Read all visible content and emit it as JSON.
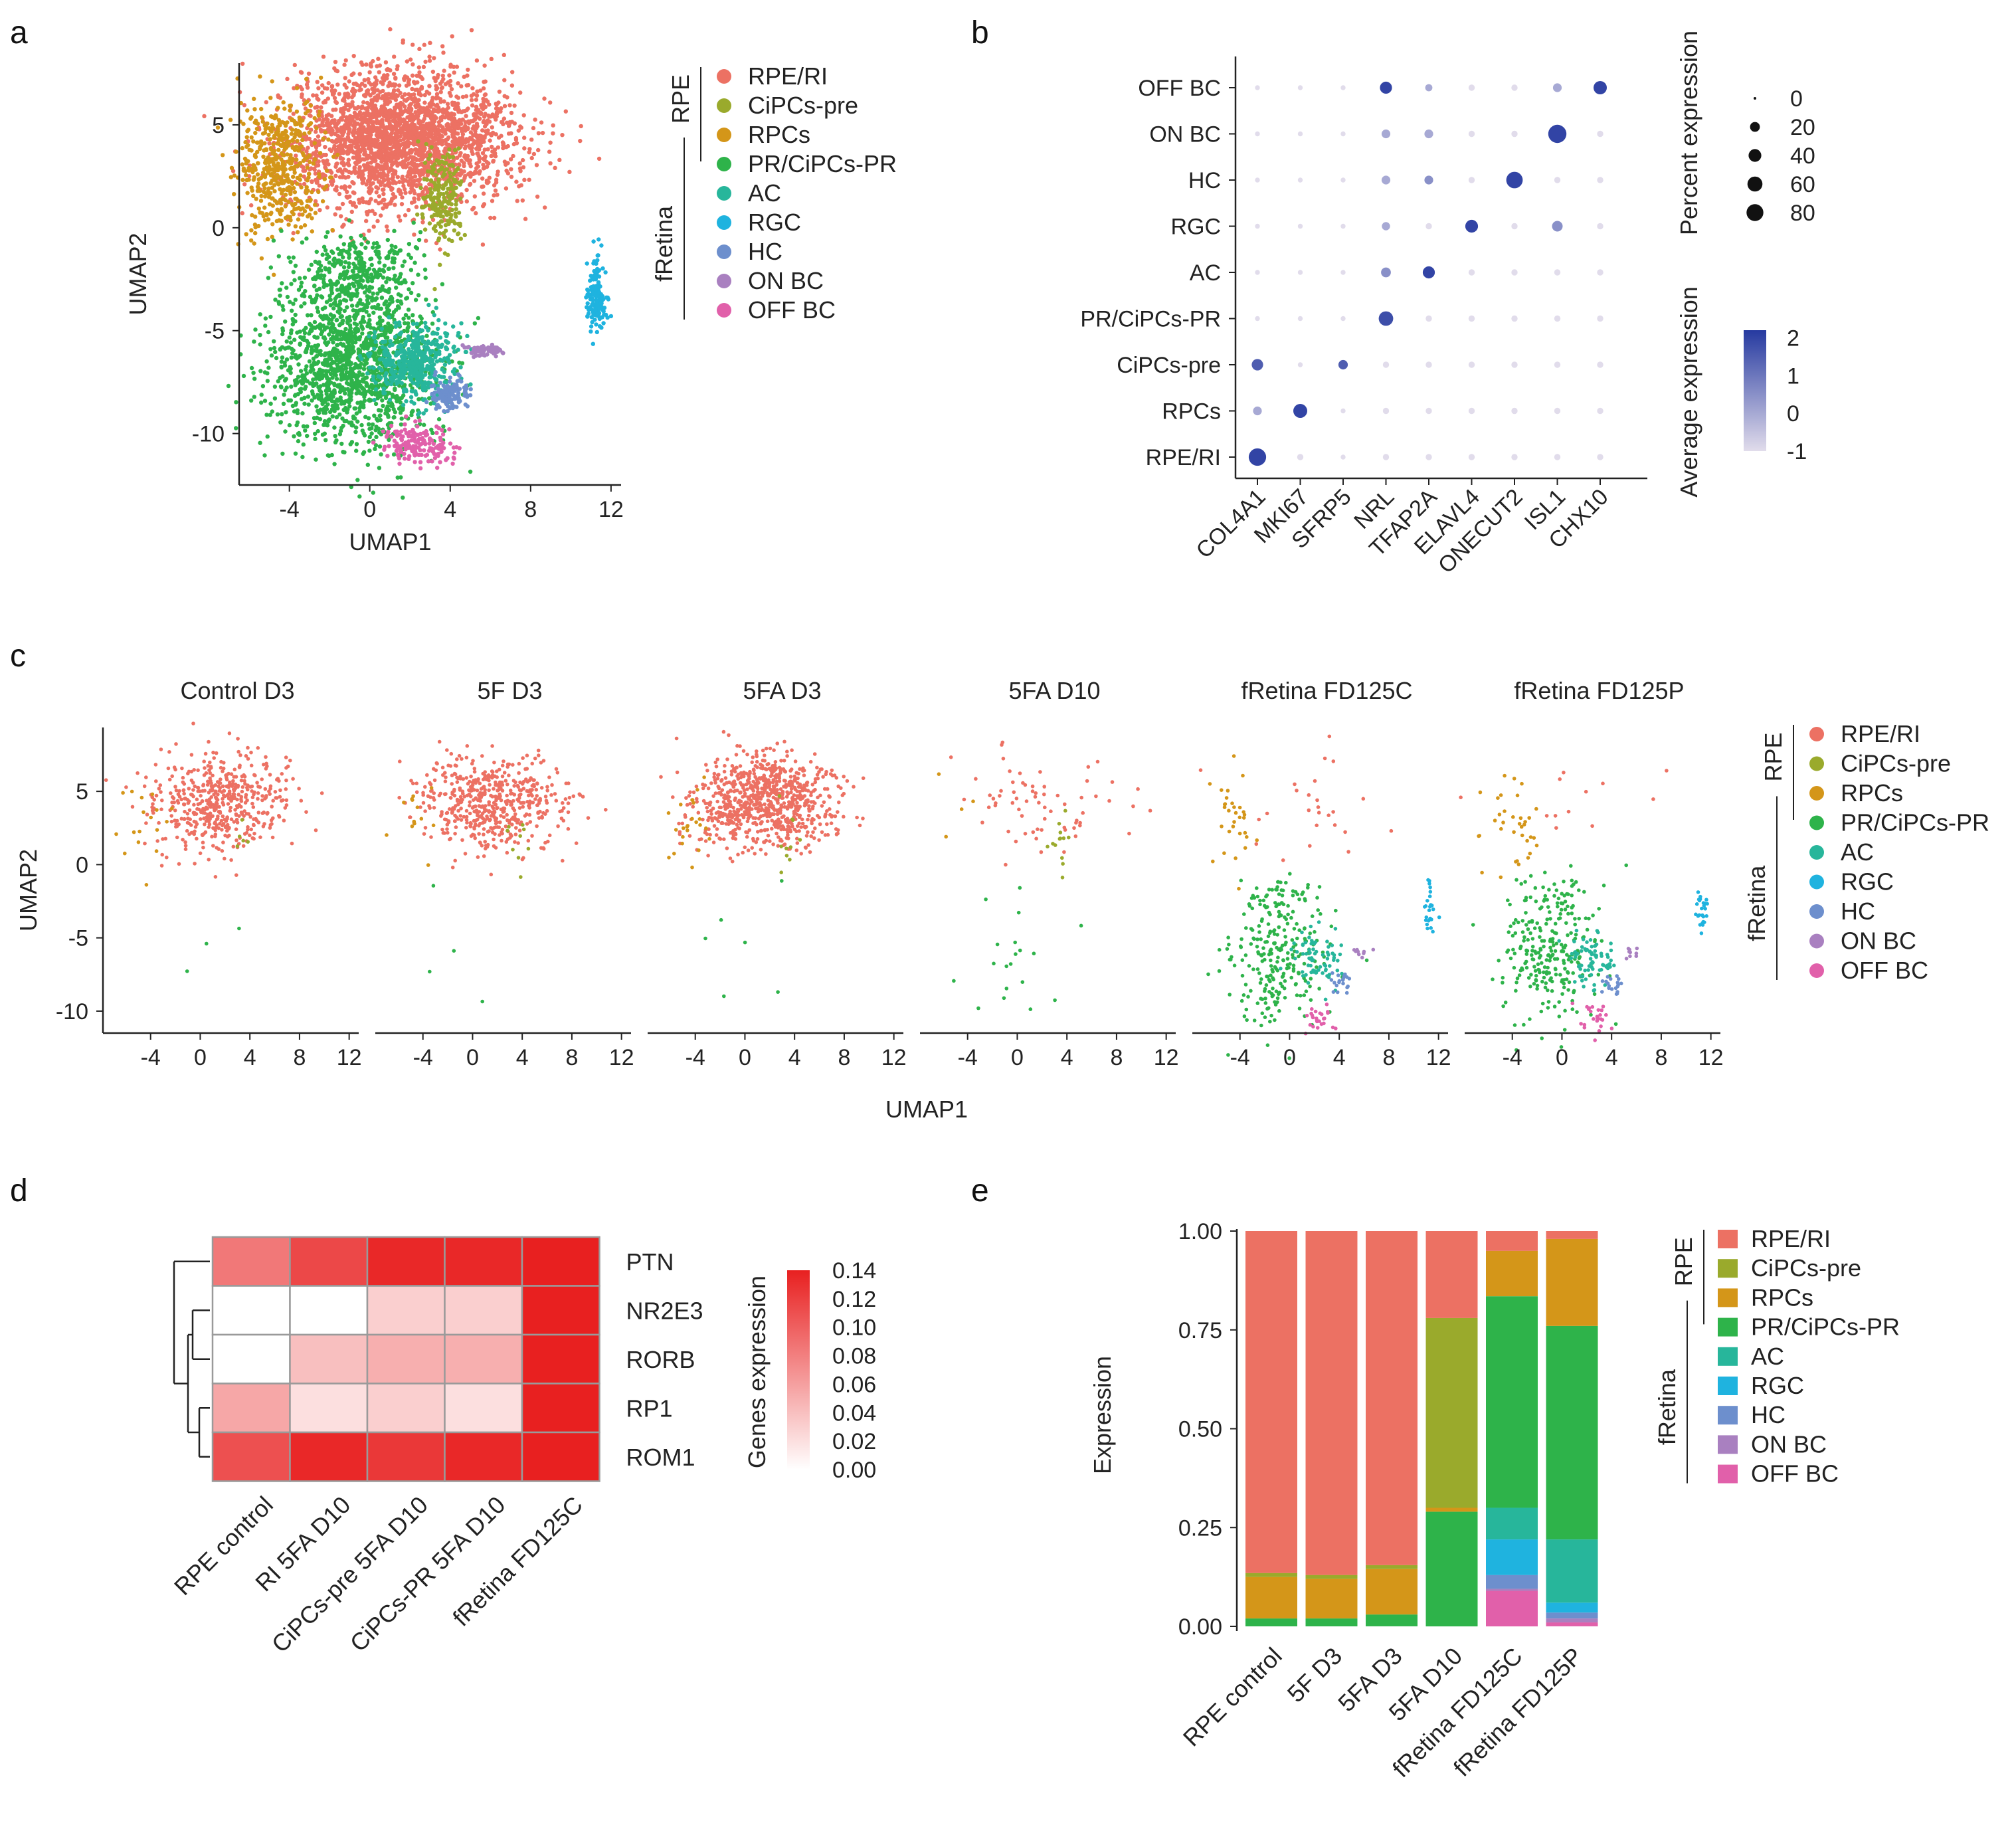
{
  "cell_types": {
    "names": [
      "RPE/RI",
      "CiPCs-pre",
      "RPCs",
      "PR/CiPCs-PR",
      "AC",
      "RGC",
      "HC",
      "ON BC",
      "OFF BC"
    ],
    "colors": [
      "#ec7163",
      "#9aaa2c",
      "#d49619",
      "#2eb34a",
      "#27b69b",
      "#1fb3df",
      "#6d8fcd",
      "#a980c0",
      "#e160aa"
    ],
    "groups": [
      {
        "label": "RPE",
        "members": [
          "RPE/RI",
          "CiPCs-pre",
          "RPCs"
        ]
      },
      {
        "label": "fRetina",
        "members": [
          "PR/CiPCs-PR",
          "AC",
          "RGC",
          "HC",
          "ON BC",
          "OFF BC"
        ]
      }
    ]
  },
  "panel_labels": {
    "a": "a",
    "b": "b",
    "c": "c",
    "d": "d",
    "e": "e"
  },
  "chart_data": [
    {
      "id": "a",
      "type": "scatter",
      "xlabel": "UMAP1",
      "ylabel": "UMAP2",
      "xticks": [
        -4,
        0,
        4,
        8,
        12
      ],
      "yticks": [
        5,
        0,
        -5,
        -10
      ],
      "xlim": [
        -6.5,
        12.5
      ],
      "ylim": [
        -12.5,
        8
      ],
      "clusters": [
        {
          "type": "RPE/RI",
          "cx": 1.5,
          "cy": 4.3,
          "sx": 2.8,
          "sy": 1.6,
          "n": 2600
        },
        {
          "type": "RPCs",
          "cx": -4.5,
          "cy": 3.0,
          "sx": 1.0,
          "sy": 1.6,
          "n": 500
        },
        {
          "type": "CiPCs-pre",
          "cx": 3.6,
          "cy": 1.5,
          "sx": 0.5,
          "sy": 1.2,
          "n": 220
        },
        {
          "type": "PR/CiPCs-PR",
          "cx": -1.0,
          "cy": -6.5,
          "sx": 2.0,
          "sy": 2.2,
          "n": 1500
        },
        {
          "type": "PR/CiPCs-PR",
          "cx": -0.5,
          "cy": -2.0,
          "sx": 1.6,
          "sy": 0.8,
          "n": 250
        },
        {
          "type": "AC",
          "cx": 2.3,
          "cy": -6.5,
          "sx": 1.0,
          "sy": 0.9,
          "n": 450
        },
        {
          "type": "RGC",
          "cx": 11.3,
          "cy": -3.3,
          "sx": 0.25,
          "sy": 0.9,
          "n": 160
        },
        {
          "type": "HC",
          "cx": 4.0,
          "cy": -8.1,
          "sx": 0.5,
          "sy": 0.4,
          "n": 120
        },
        {
          "type": "ON BC",
          "cx": 5.8,
          "cy": -6.0,
          "sx": 0.5,
          "sy": 0.15,
          "n": 60
        },
        {
          "type": "OFF BC",
          "cx": 2.4,
          "cy": -10.5,
          "sx": 0.9,
          "sy": 0.5,
          "n": 160
        }
      ]
    },
    {
      "id": "b",
      "type": "dotplot",
      "genes": [
        "COL4A1",
        "MKI67",
        "SFRP5",
        "NRL",
        "TFAP2A",
        "ELAVL4",
        "ONECUT2",
        "ISL1",
        "CHX10"
      ],
      "rows": [
        "OFF BC",
        "ON BC",
        "HC",
        "RGC",
        "AC",
        "PR/CiPCs-PR",
        "CiPCs-pre",
        "RPCs",
        "RPE/RI"
      ],
      "percent": [
        [
          2,
          2,
          2,
          35,
          8,
          5,
          5,
          15,
          45
        ],
        [
          2,
          2,
          2,
          15,
          15,
          5,
          5,
          95,
          5
        ],
        [
          2,
          2,
          2,
          15,
          15,
          5,
          75,
          5,
          5
        ],
        [
          2,
          2,
          2,
          12,
          5,
          40,
          5,
          25,
          5
        ],
        [
          2,
          2,
          2,
          20,
          35,
          5,
          5,
          5,
          5
        ],
        [
          2,
          2,
          2,
          55,
          5,
          5,
          5,
          5,
          5
        ],
        [
          30,
          2,
          18,
          5,
          5,
          5,
          5,
          5,
          5
        ],
        [
          15,
          50,
          2,
          5,
          5,
          5,
          5,
          5,
          5
        ],
        [
          85,
          5,
          2,
          5,
          5,
          5,
          5,
          5,
          5
        ]
      ],
      "avg_expr": [
        [
          -1,
          -1,
          -1,
          2,
          0,
          -1,
          -1,
          0,
          2
        ],
        [
          -1,
          -1,
          -1,
          0,
          0,
          -1,
          -1,
          2,
          -1
        ],
        [
          -1,
          -1,
          -1,
          0,
          0.5,
          -1,
          2,
          -1,
          -1
        ],
        [
          -1,
          -1,
          -1,
          0,
          -1,
          2,
          -1,
          0.5,
          -1
        ],
        [
          -1,
          -1,
          -1,
          0.5,
          2,
          -1,
          -1,
          -1,
          -1
        ],
        [
          -1,
          -1,
          -1,
          1.8,
          -1,
          -1,
          -1,
          -1,
          -1
        ],
        [
          1.5,
          -1,
          1.5,
          -1,
          -1,
          -1,
          -1,
          -1,
          -1
        ],
        [
          0,
          2,
          -1,
          -1,
          -1,
          -1,
          -1,
          -1,
          -1
        ],
        [
          2,
          -1,
          -1,
          -1,
          -1,
          -1,
          -1,
          -1,
          -1
        ]
      ],
      "size_legend": {
        "title": "Percent expression",
        "values": [
          0,
          20,
          40,
          60,
          80
        ]
      },
      "color_legend": {
        "title": "Average expression",
        "ticks": [
          2,
          1,
          0,
          -1
        ],
        "range": [
          -1,
          2.2
        ]
      }
    },
    {
      "id": "c",
      "type": "scatter-facets",
      "xlabel": "UMAP1",
      "ylabel": "UMAP2",
      "xticks": [
        -4,
        0,
        4,
        8,
        12
      ],
      "yticks": [
        5,
        0,
        -5,
        -10
      ],
      "facets": [
        {
          "title": "Control D3",
          "weights": {
            "RPE/RI": 1.0,
            "RPCs": 0.18,
            "CiPCs-pre": 0.12,
            "PR/CiPCs-PR": 0.01
          },
          "density": 0.55
        },
        {
          "title": "5F  D3",
          "weights": {
            "RPE/RI": 1.0,
            "RPCs": 0.12,
            "CiPCs-pre": 0.2,
            "PR/CiPCs-PR": 0.01,
            "OFF BC": 0.002
          },
          "density": 0.6
        },
        {
          "title": "5FA  D3",
          "weights": {
            "RPE/RI": 1.0,
            "RPCs": 0.15,
            "CiPCs-pre": 0.15,
            "PR/CiPCs-PR": 0.01
          },
          "density": 0.9
        },
        {
          "title": "5FA  D10",
          "weights": {
            "RPE/RI": 0.3,
            "RPCs": 0.08,
            "CiPCs-pre": 0.7,
            "PR/CiPCs-PR": 0.12
          },
          "density": 0.25
        },
        {
          "title": "fRetina  FD125C",
          "weights": {
            "RPE/RI": 0.06,
            "RPCs": 0.4,
            "CiPCs-pre": 0.0,
            "PR/CiPCs-PR": 1.0,
            "AC": 1.0,
            "RGC": 1.0,
            "HC": 1.0,
            "ON BC": 1.0,
            "OFF BC": 1.0
          },
          "density": 0.45
        },
        {
          "title": "fRetina  FD125P",
          "weights": {
            "RPE/RI": 0.03,
            "RPCs": 0.45,
            "CiPCs-pre": 0.01,
            "PR/CiPCs-PR": 1.0,
            "AC": 1.0,
            "RGC": 1.0,
            "HC": 1.0,
            "ON BC": 1.0,
            "OFF BC": 1.0
          },
          "density": 0.45
        }
      ]
    },
    {
      "id": "d",
      "type": "heatmap",
      "columns": [
        "RPE control",
        "RI 5FA D10",
        "CiPCs-pre 5FA D10",
        "CiPCs-PR 5FA D10",
        "fRetina FD125C"
      ],
      "rows": [
        "PTN",
        "NR2E3",
        "RORB",
        "RP1",
        "ROM1"
      ],
      "values": [
        [
          0.085,
          0.115,
          0.135,
          0.135,
          0.14
        ],
        [
          0.0,
          0.0,
          0.03,
          0.03,
          0.14
        ],
        [
          0.0,
          0.04,
          0.05,
          0.05,
          0.14
        ],
        [
          0.055,
          0.02,
          0.03,
          0.02,
          0.14
        ],
        [
          0.11,
          0.135,
          0.125,
          0.135,
          0.14
        ]
      ],
      "colorbar": {
        "title": "Genes expression",
        "ticks": [
          0.14,
          0.12,
          0.1,
          0.08,
          0.06,
          0.04,
          0.02,
          0.0
        ],
        "range": [
          0,
          0.14
        ]
      }
    },
    {
      "id": "e",
      "type": "stacked-bar",
      "ylabel": "Expression",
      "yticks": [
        1.0,
        0.75,
        0.5,
        0.25,
        0.0
      ],
      "ytick_labels": [
        "1.00",
        "0.75",
        "0.50",
        "0.25",
        "0.00"
      ],
      "categories": [
        "RPE control",
        "5F D3",
        "5FA D3",
        "5FA D10",
        "fRetina FD125C",
        "fRetina FD125P"
      ],
      "series": [
        {
          "name": "RPE/RI",
          "values": [
            0.865,
            0.87,
            0.845,
            0.22,
            0.05,
            0.02
          ]
        },
        {
          "name": "CiPCs-pre",
          "values": [
            0.01,
            0.01,
            0.01,
            0.48,
            0.0,
            0.0
          ]
        },
        {
          "name": "RPCs",
          "values": [
            0.105,
            0.1,
            0.115,
            0.01,
            0.115,
            0.22
          ]
        },
        {
          "name": "PR/CiPCs-PR",
          "values": [
            0.02,
            0.02,
            0.03,
            0.29,
            0.535,
            0.54
          ]
        },
        {
          "name": "AC",
          "values": [
            0.0,
            0.0,
            0.0,
            0.0,
            0.08,
            0.16
          ]
        },
        {
          "name": "RGC",
          "values": [
            0.0,
            0.0,
            0.0,
            0.0,
            0.09,
            0.025
          ]
        },
        {
          "name": "HC",
          "values": [
            0.0,
            0.0,
            0.0,
            0.0,
            0.035,
            0.015
          ]
        },
        {
          "name": "ON BC",
          "values": [
            0.0,
            0.0,
            0.0,
            0.0,
            0.005,
            0.01
          ]
        },
        {
          "name": "OFF BC",
          "values": [
            0.0,
            0.0,
            0.0,
            0.0,
            0.09,
            0.01
          ]
        }
      ]
    }
  ]
}
